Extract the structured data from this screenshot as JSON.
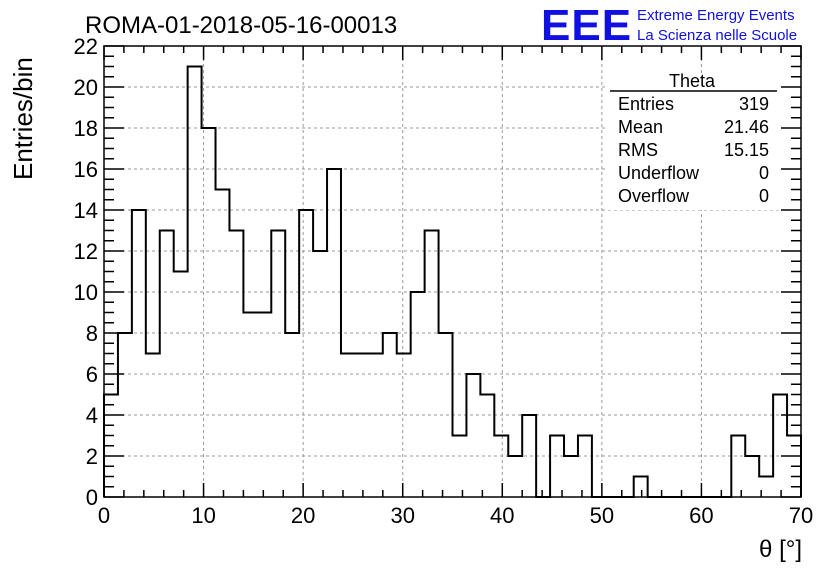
{
  "header": {
    "run_title": "ROMA-01-2018-05-16-00013",
    "logo_text": "EEE",
    "logo_line1": "Extreme Energy Events",
    "logo_line2": "La Scienza nelle Scuole",
    "logo_color": "#1010e0"
  },
  "stats_box": {
    "title": "Theta",
    "rows": [
      {
        "label": "Entries",
        "value": "319"
      },
      {
        "label": "Mean",
        "value": "21.46"
      },
      {
        "label": "RMS",
        "value": "15.15"
      },
      {
        "label": "Underflow",
        "value": "0"
      },
      {
        "label": "Overflow",
        "value": "0"
      }
    ]
  },
  "chart_data": {
    "type": "bar",
    "style": "step-histogram",
    "ylabel": "Entries/bin",
    "xlabel": "θ [°]",
    "xlim": [
      0,
      70
    ],
    "ylim": [
      0,
      22
    ],
    "bin_width": 1.4,
    "x_ticks": [
      "0",
      "10",
      "20",
      "30",
      "40",
      "50",
      "60",
      "70"
    ],
    "y_ticks": [
      "0",
      "2",
      "4",
      "6",
      "8",
      "10",
      "12",
      "14",
      "16",
      "18",
      "20",
      "22"
    ],
    "grid": true,
    "values": [
      5,
      8,
      14,
      7,
      13,
      11,
      21,
      18,
      15,
      13,
      9,
      9,
      13,
      8,
      14,
      12,
      16,
      7,
      7,
      7,
      8,
      7,
      10,
      13,
      8,
      3,
      6,
      5,
      3,
      2,
      4,
      0,
      3,
      2,
      3,
      0,
      0,
      0,
      1,
      0,
      0,
      0,
      0,
      0,
      0,
      3,
      2,
      1,
      5,
      3
    ]
  }
}
